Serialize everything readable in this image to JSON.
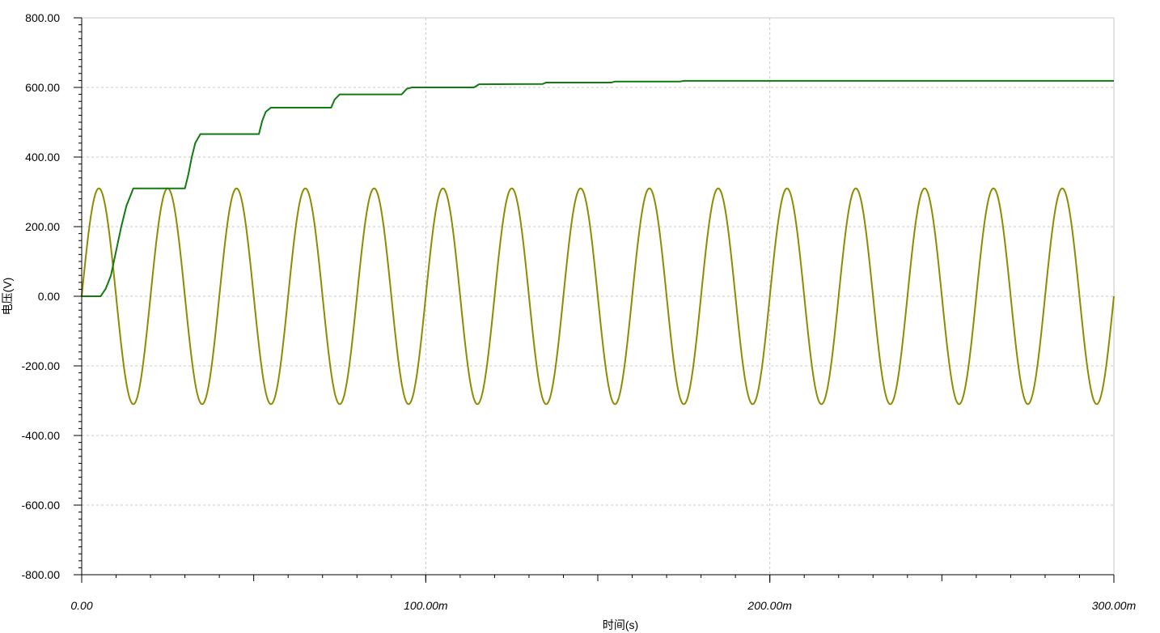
{
  "chart_data": {
    "type": "line",
    "xlabel": "时间(s)",
    "ylabel": "电压(V)",
    "xlim": [
      0,
      0.3
    ],
    "ylim": [
      -800,
      800
    ],
    "grid": true,
    "x_ticks": [
      {
        "value": 0,
        "label": "0.00"
      },
      {
        "value": 0.1,
        "label": "100.00m"
      },
      {
        "value": 0.2,
        "label": "200.00m"
      },
      {
        "value": 0.3,
        "label": "300.00m"
      }
    ],
    "y_ticks": [
      {
        "value": 800,
        "label": "800.00"
      },
      {
        "value": 600,
        "label": "600.00"
      },
      {
        "value": 400,
        "label": "400.00"
      },
      {
        "value": 200,
        "label": "200.00"
      },
      {
        "value": 0,
        "label": "0.00"
      },
      {
        "value": -200,
        "label": "-200.00"
      },
      {
        "value": -400,
        "label": "-400.00"
      },
      {
        "value": -600,
        "label": "-600.00"
      },
      {
        "value": -800,
        "label": "-800.00"
      }
    ],
    "series": [
      {
        "type": "sine",
        "amplitude": 310,
        "frequency": 50,
        "color": "#8c8c00"
      },
      {
        "type": "step",
        "color": "#117a11",
        "points": [
          [
            0,
            0
          ],
          [
            0.0055,
            0
          ],
          [
            0.007,
            22
          ],
          [
            0.0085,
            60
          ],
          [
            0.01,
            130
          ],
          [
            0.0115,
            200
          ],
          [
            0.013,
            260
          ],
          [
            0.0145,
            297
          ],
          [
            0.015,
            310
          ],
          [
            0.03,
            310
          ],
          [
            0.031,
            350
          ],
          [
            0.032,
            400
          ],
          [
            0.033,
            440
          ],
          [
            0.0345,
            466
          ],
          [
            0.0515,
            466
          ],
          [
            0.0525,
            505
          ],
          [
            0.0535,
            530
          ],
          [
            0.055,
            542
          ],
          [
            0.0725,
            542
          ],
          [
            0.0735,
            565
          ],
          [
            0.075,
            580
          ],
          [
            0.093,
            580
          ],
          [
            0.0945,
            596
          ],
          [
            0.096,
            600
          ],
          [
            0.114,
            600
          ],
          [
            0.1155,
            609
          ],
          [
            0.134,
            610
          ],
          [
            0.135,
            614
          ],
          [
            0.154,
            614
          ],
          [
            0.155,
            617
          ],
          [
            0.174,
            617
          ],
          [
            0.175,
            619
          ],
          [
            0.3,
            619
          ]
        ]
      }
    ]
  }
}
